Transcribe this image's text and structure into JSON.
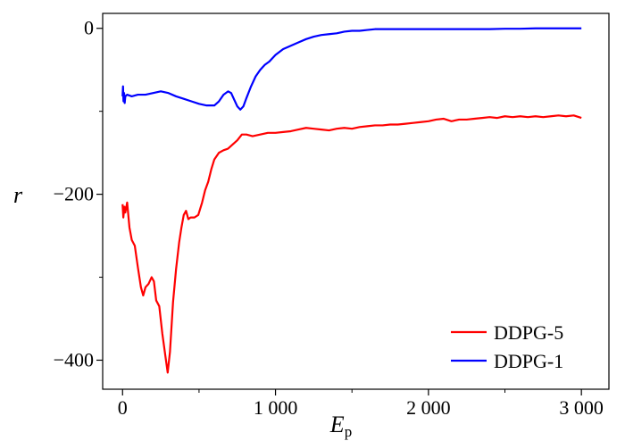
{
  "chart_data": {
    "type": "line",
    "xlabel": "E",
    "xlabel_sub": "p",
    "ylabel": "r",
    "xlim": [
      -130,
      3180
    ],
    "ylim": [
      -435,
      18
    ],
    "x_ticks": [
      {
        "value": 0,
        "label": "0"
      },
      {
        "value": 1000,
        "label": "1 000"
      },
      {
        "value": 2000,
        "label": "2 000"
      },
      {
        "value": 3000,
        "label": "3 000"
      }
    ],
    "x_minor_ticks": [
      500,
      1500,
      2500
    ],
    "y_ticks": [
      {
        "value": 0,
        "label": "0"
      },
      {
        "value": -200,
        "label": "−200"
      },
      {
        "value": -400,
        "label": "−400"
      }
    ],
    "y_minor_ticks": [
      -100,
      -300
    ],
    "grid": false,
    "legend_position": "bottom-right",
    "series": [
      {
        "name": "DDPG-5",
        "color": "#ff0000",
        "points": [
          [
            0,
            -212
          ],
          [
            5,
            -228
          ],
          [
            12,
            -215
          ],
          [
            18,
            -222
          ],
          [
            30,
            -210
          ],
          [
            45,
            -240
          ],
          [
            60,
            -255
          ],
          [
            80,
            -262
          ],
          [
            100,
            -288
          ],
          [
            120,
            -312
          ],
          [
            135,
            -322
          ],
          [
            150,
            -312
          ],
          [
            170,
            -308
          ],
          [
            190,
            -300
          ],
          [
            205,
            -305
          ],
          [
            220,
            -328
          ],
          [
            240,
            -335
          ],
          [
            260,
            -368
          ],
          [
            280,
            -395
          ],
          [
            295,
            -415
          ],
          [
            310,
            -390
          ],
          [
            330,
            -330
          ],
          [
            350,
            -290
          ],
          [
            370,
            -258
          ],
          [
            385,
            -240
          ],
          [
            400,
            -225
          ],
          [
            415,
            -220
          ],
          [
            430,
            -230
          ],
          [
            445,
            -228
          ],
          [
            470,
            -228
          ],
          [
            495,
            -225
          ],
          [
            520,
            -210
          ],
          [
            540,
            -195
          ],
          [
            560,
            -185
          ],
          [
            580,
            -170
          ],
          [
            600,
            -158
          ],
          [
            630,
            -150
          ],
          [
            660,
            -147
          ],
          [
            690,
            -145
          ],
          [
            720,
            -140
          ],
          [
            750,
            -135
          ],
          [
            780,
            -128
          ],
          [
            810,
            -128
          ],
          [
            850,
            -130
          ],
          [
            900,
            -128
          ],
          [
            950,
            -126
          ],
          [
            1000,
            -126
          ],
          [
            1050,
            -125
          ],
          [
            1100,
            -124
          ],
          [
            1150,
            -122
          ],
          [
            1200,
            -120
          ],
          [
            1250,
            -121
          ],
          [
            1300,
            -122
          ],
          [
            1350,
            -123
          ],
          [
            1400,
            -121
          ],
          [
            1450,
            -120
          ],
          [
            1500,
            -121
          ],
          [
            1550,
            -119
          ],
          [
            1600,
            -118
          ],
          [
            1650,
            -117
          ],
          [
            1700,
            -117
          ],
          [
            1750,
            -116
          ],
          [
            1800,
            -116
          ],
          [
            1850,
            -115
          ],
          [
            1900,
            -114
          ],
          [
            1950,
            -113
          ],
          [
            2000,
            -112
          ],
          [
            2050,
            -110
          ],
          [
            2100,
            -109
          ],
          [
            2150,
            -112
          ],
          [
            2200,
            -110
          ],
          [
            2250,
            -110
          ],
          [
            2300,
            -109
          ],
          [
            2350,
            -108
          ],
          [
            2400,
            -107
          ],
          [
            2450,
            -108
          ],
          [
            2500,
            -106
          ],
          [
            2550,
            -107
          ],
          [
            2600,
            -106
          ],
          [
            2650,
            -107
          ],
          [
            2700,
            -106
          ],
          [
            2750,
            -107
          ],
          [
            2800,
            -106
          ],
          [
            2850,
            -105
          ],
          [
            2900,
            -106
          ],
          [
            2950,
            -105
          ],
          [
            3000,
            -108
          ]
        ]
      },
      {
        "name": "DDPG-1",
        "color": "#0000ff",
        "points": [
          [
            0,
            -82
          ],
          [
            3,
            -70
          ],
          [
            6,
            -88
          ],
          [
            10,
            -78
          ],
          [
            14,
            -90
          ],
          [
            18,
            -82
          ],
          [
            30,
            -80
          ],
          [
            60,
            -82
          ],
          [
            100,
            -80
          ],
          [
            150,
            -80
          ],
          [
            200,
            -78
          ],
          [
            250,
            -76
          ],
          [
            300,
            -78
          ],
          [
            350,
            -82
          ],
          [
            400,
            -85
          ],
          [
            450,
            -88
          ],
          [
            500,
            -91
          ],
          [
            550,
            -93
          ],
          [
            600,
            -93
          ],
          [
            630,
            -88
          ],
          [
            660,
            -80
          ],
          [
            690,
            -76
          ],
          [
            710,
            -78
          ],
          [
            730,
            -86
          ],
          [
            750,
            -94
          ],
          [
            770,
            -98
          ],
          [
            790,
            -94
          ],
          [
            810,
            -84
          ],
          [
            840,
            -70
          ],
          [
            870,
            -58
          ],
          [
            900,
            -50
          ],
          [
            930,
            -44
          ],
          [
            960,
            -40
          ],
          [
            1000,
            -32
          ],
          [
            1050,
            -25
          ],
          [
            1100,
            -21
          ],
          [
            1150,
            -17
          ],
          [
            1200,
            -13
          ],
          [
            1250,
            -10
          ],
          [
            1300,
            -8
          ],
          [
            1350,
            -7
          ],
          [
            1400,
            -6
          ],
          [
            1450,
            -4
          ],
          [
            1500,
            -3
          ],
          [
            1550,
            -3
          ],
          [
            1600,
            -2
          ],
          [
            1650,
            -1
          ],
          [
            1700,
            -1
          ],
          [
            1800,
            -1
          ],
          [
            1900,
            -1
          ],
          [
            2000,
            -1
          ],
          [
            2100,
            -1
          ],
          [
            2200,
            -1
          ],
          [
            2300,
            -1
          ],
          [
            2400,
            -1
          ],
          [
            2500,
            -0.5
          ],
          [
            2600,
            -0.5
          ],
          [
            2700,
            0
          ],
          [
            2800,
            0
          ],
          [
            2900,
            0
          ],
          [
            3000,
            0
          ]
        ]
      }
    ]
  }
}
